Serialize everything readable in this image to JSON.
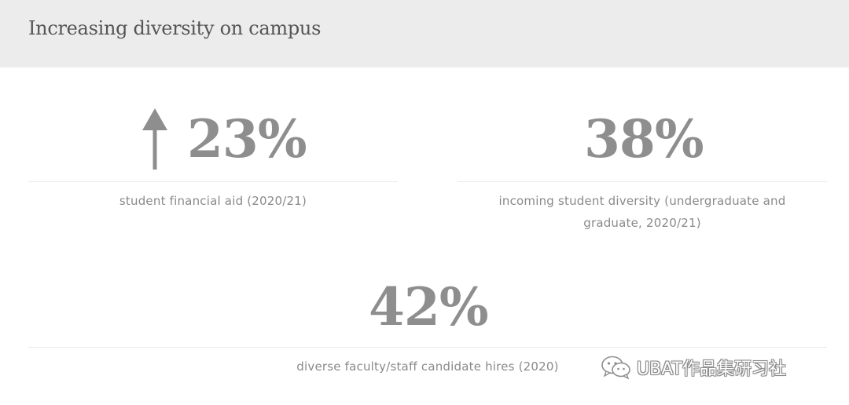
{
  "header": {
    "title": "Increasing diversity on campus"
  },
  "stats": [
    {
      "value": "23%",
      "caption": "student financial aid (2020/21)",
      "trend_icon": "arrow-up-icon"
    },
    {
      "value": "38%",
      "caption_line1": "incoming student diversity (undergraduate and",
      "caption_line2": "graduate, 2020/21)"
    },
    {
      "value": "42%",
      "caption": "diverse faculty/staff candidate hires (2020)"
    }
  ],
  "watermark": {
    "text": "UBAT作品集研习社",
    "icon": "wechat-icon"
  },
  "colors": {
    "header_bg": "#ececec",
    "title": "#555555",
    "value": "#8e8e8e",
    "caption": "#8a8a8a",
    "divider": "#ebebeb"
  }
}
